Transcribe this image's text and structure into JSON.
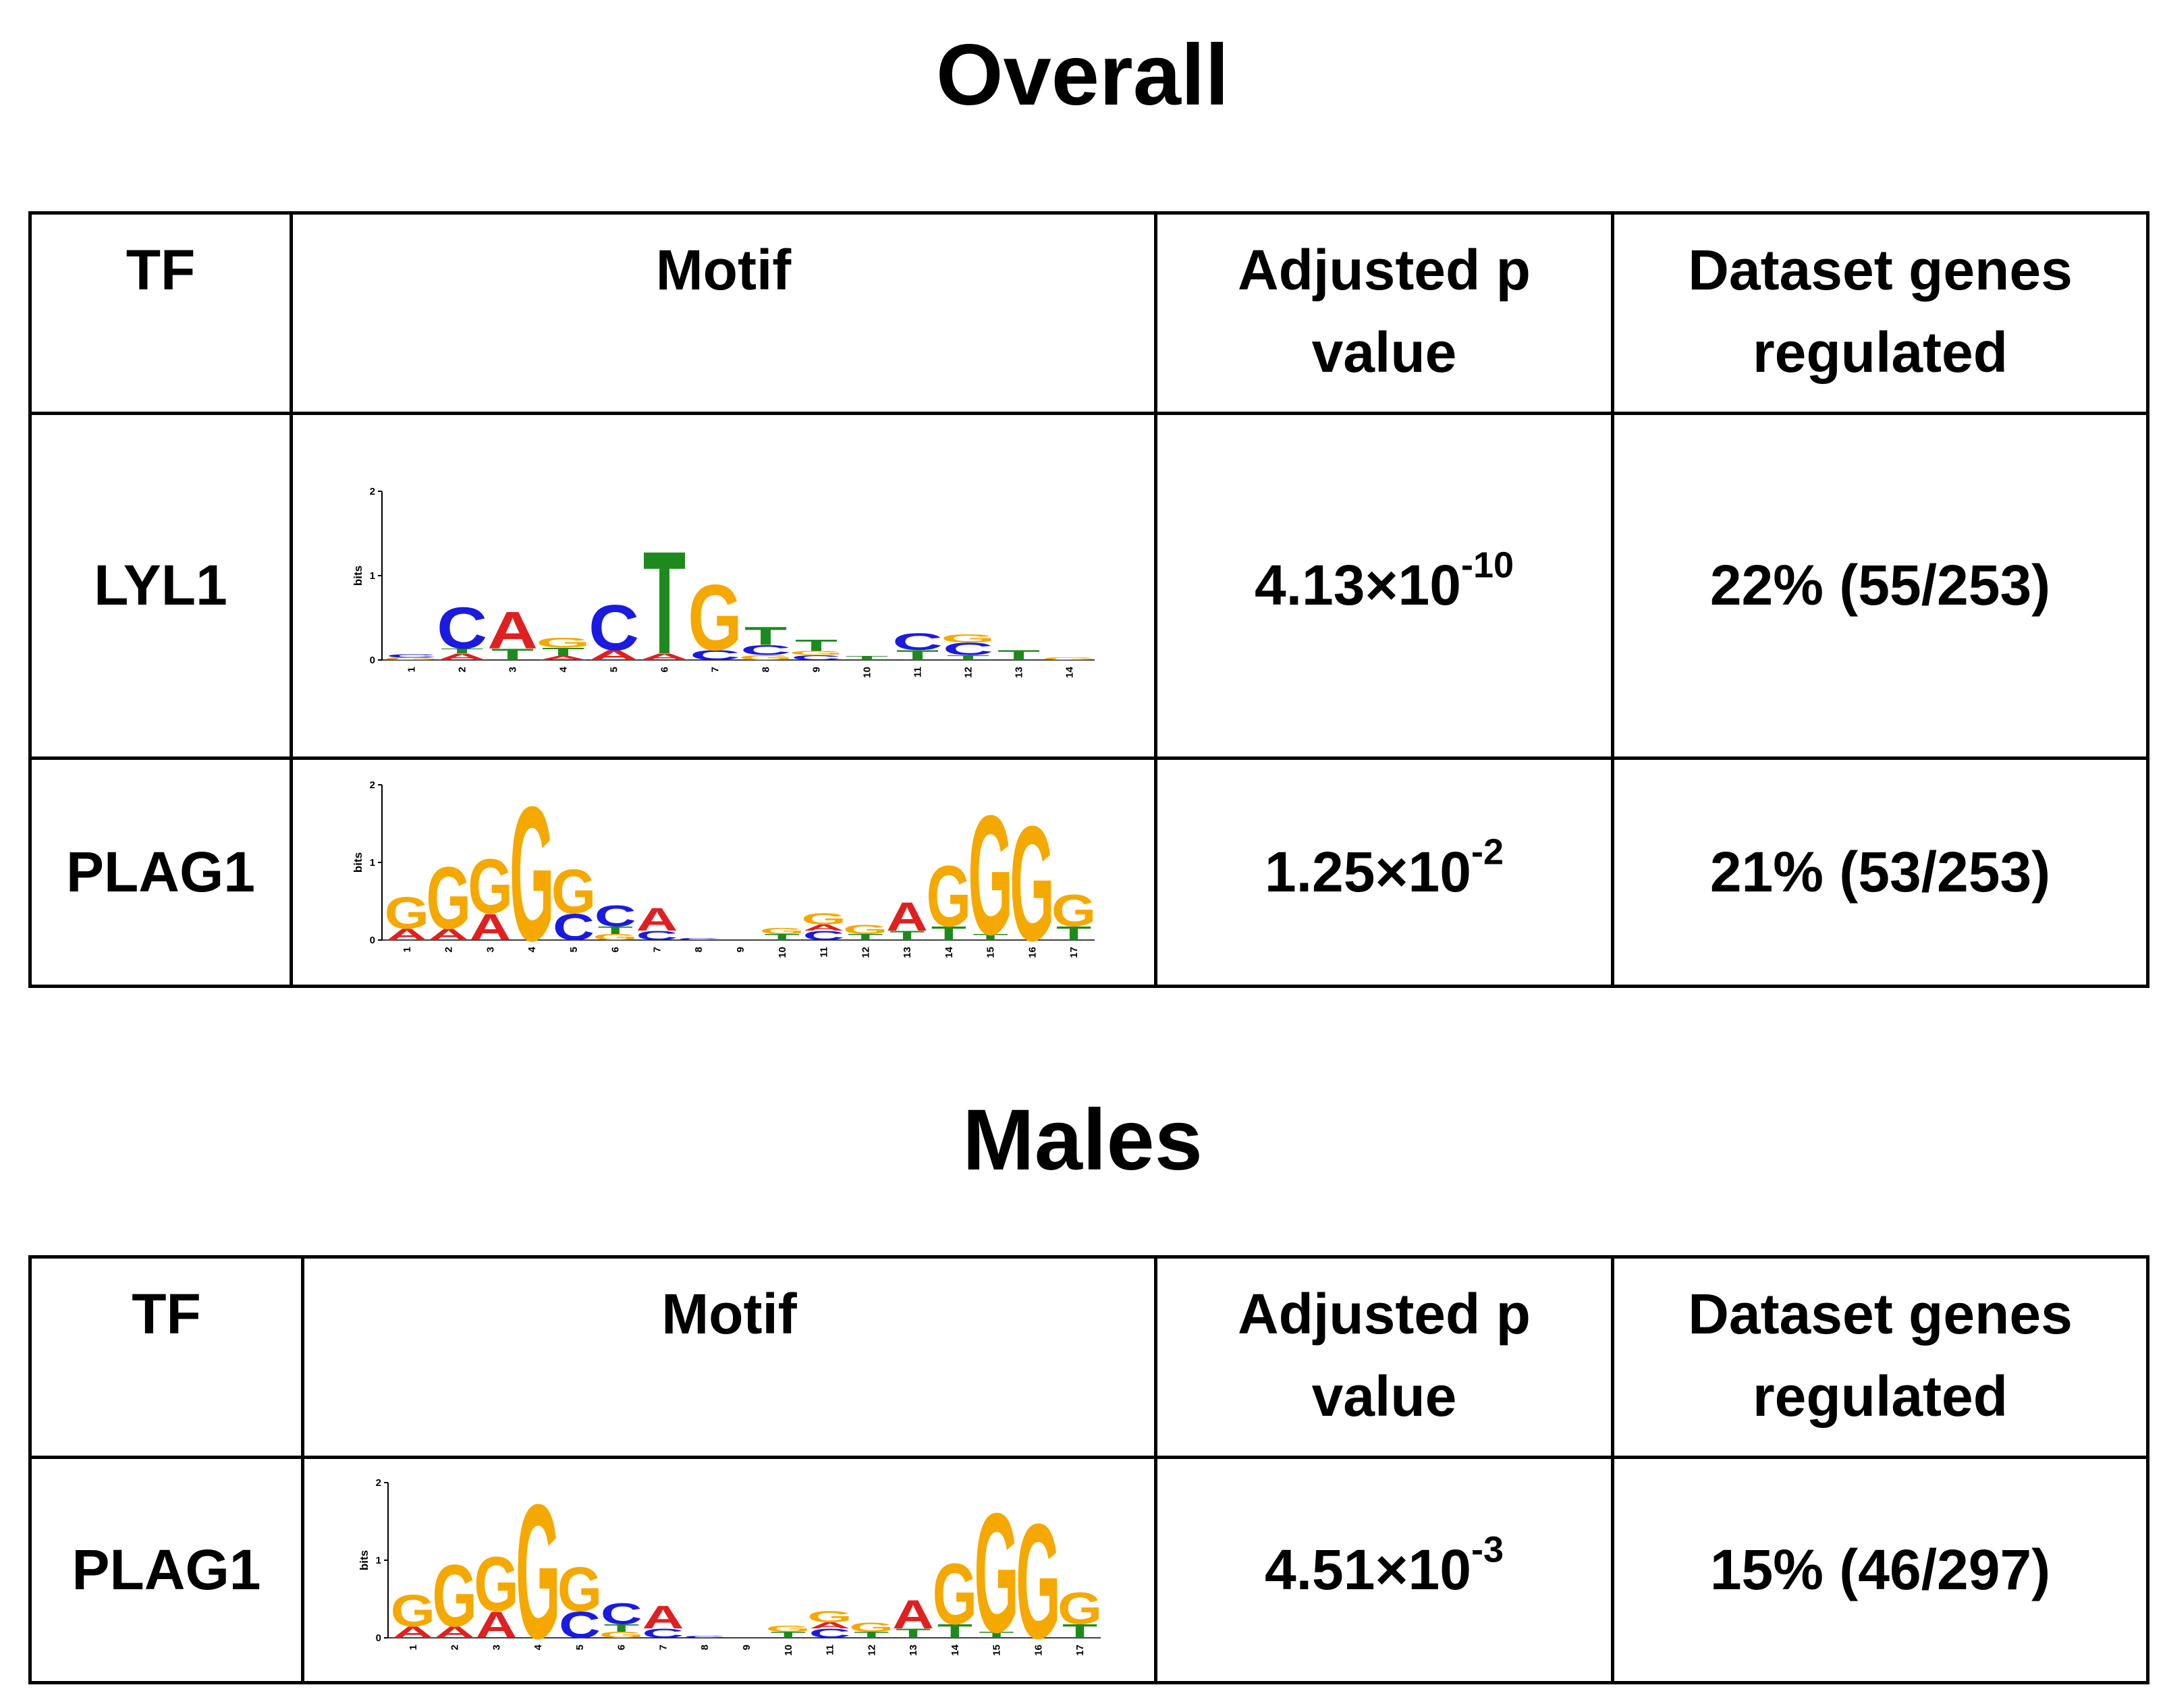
{
  "colors": {
    "A": "#e02020",
    "C": "#1a1ae0",
    "G": "#f5a800",
    "T": "#1d8a1d",
    "border": "#000000"
  },
  "sections": [
    {
      "title": "Overall",
      "headers": {
        "tf": "TF",
        "motif": "Motif",
        "pval": "Adjusted p value",
        "genes": "Dataset genes regulated"
      },
      "rows": [
        {
          "tf": "LYL1",
          "pval_base": "4.13×10",
          "pval_exp": "-10",
          "genes": "22% (55/253)",
          "motif_id": "lyl1"
        },
        {
          "tf": "PLAG1",
          "pval_base": "1.25×10",
          "pval_exp": "-2",
          "genes": "21% (53/253)",
          "motif_id": "plag1"
        }
      ]
    },
    {
      "title": "Males",
      "headers": {
        "tf": "TF",
        "motif": "Motif",
        "pval": "Adjusted p value",
        "genes": "Dataset genes regulated"
      },
      "rows": [
        {
          "tf": "PLAG1",
          "pval_base": "4.51×10",
          "pval_exp": "-3",
          "genes": "15% (46/297)",
          "motif_id": "plag1"
        }
      ]
    }
  ],
  "motifs": {
    "lyl1": {
      "ylabel": "bits",
      "yticks": [
        "0",
        "1",
        "2"
      ],
      "ymax": 2,
      "positions": [
        {
          "label": "1",
          "letters": [
            [
              "G",
              0.03
            ],
            [
              "C",
              0.04
            ]
          ]
        },
        {
          "label": "2",
          "letters": [
            [
              "A",
              0.08
            ],
            [
              "T",
              0.06
            ],
            [
              "C",
              0.5
            ]
          ]
        },
        {
          "label": "3",
          "letters": [
            [
              "T",
              0.14
            ],
            [
              "A",
              0.45
            ]
          ]
        },
        {
          "label": "4",
          "letters": [
            [
              "A",
              0.05
            ],
            [
              "T",
              0.1
            ],
            [
              "G",
              0.12
            ]
          ]
        },
        {
          "label": "5",
          "letters": [
            [
              "A",
              0.12
            ],
            [
              "C",
              0.55
            ]
          ]
        },
        {
          "label": "6",
          "letters": [
            [
              "A",
              0.08
            ],
            [
              "T",
              1.25
            ]
          ]
        },
        {
          "label": "7",
          "letters": [
            [
              "C",
              0.12
            ],
            [
              "G",
              0.8
            ]
          ]
        },
        {
          "label": "8",
          "letters": [
            [
              "G",
              0.06
            ],
            [
              "C",
              0.12
            ],
            [
              "T",
              0.22
            ]
          ]
        },
        {
          "label": "9",
          "letters": [
            [
              "C",
              0.06
            ],
            [
              "G",
              0.05
            ],
            [
              "T",
              0.14
            ]
          ]
        },
        {
          "label": "10",
          "letters": [
            [
              "T",
              0.05
            ]
          ]
        },
        {
          "label": "11",
          "letters": [
            [
              "T",
              0.12
            ],
            [
              "C",
              0.2
            ]
          ]
        },
        {
          "label": "12",
          "letters": [
            [
              "T",
              0.06
            ],
            [
              "C",
              0.15
            ],
            [
              "G",
              0.1
            ]
          ]
        },
        {
          "label": "13",
          "letters": [
            [
              "T",
              0.12
            ]
          ]
        },
        {
          "label": "14",
          "letters": [
            [
              "G",
              0.03
            ]
          ]
        }
      ]
    },
    "plag1": {
      "ylabel": "bits",
      "yticks": [
        "0",
        "1",
        "2"
      ],
      "ymax": 2,
      "positions": [
        {
          "label": "1",
          "letters": [
            [
              "A",
              0.15
            ],
            [
              "G",
              0.42
            ]
          ]
        },
        {
          "label": "2",
          "letters": [
            [
              "A",
              0.15
            ],
            [
              "G",
              0.82
            ]
          ]
        },
        {
          "label": "3",
          "letters": [
            [
              "A",
              0.35
            ],
            [
              "G",
              0.72
            ]
          ]
        },
        {
          "label": "4",
          "letters": [
            [
              "G",
              1.78
            ]
          ]
        },
        {
          "label": "5",
          "letters": [
            [
              "C",
              0.35
            ],
            [
              "G",
              0.58
            ]
          ]
        },
        {
          "label": "6",
          "letters": [
            [
              "G",
              0.08
            ],
            [
              "T",
              0.1
            ],
            [
              "C",
              0.28
            ]
          ]
        },
        {
          "label": "7",
          "letters": [
            [
              "C",
              0.12
            ],
            [
              "A",
              0.3
            ]
          ]
        },
        {
          "label": "8",
          "letters": [
            [
              "C",
              0.03
            ]
          ]
        },
        {
          "label": "9",
          "letters": []
        },
        {
          "label": "10",
          "letters": [
            [
              "T",
              0.08
            ],
            [
              "G",
              0.08
            ]
          ]
        },
        {
          "label": "11",
          "letters": [
            [
              "C",
              0.12
            ],
            [
              "A",
              0.08
            ],
            [
              "G",
              0.15
            ]
          ]
        },
        {
          "label": "12",
          "letters": [
            [
              "T",
              0.08
            ],
            [
              "G",
              0.12
            ]
          ]
        },
        {
          "label": "13",
          "letters": [
            [
              "T",
              0.12
            ],
            [
              "A",
              0.38
            ]
          ]
        },
        {
          "label": "14",
          "letters": [
            [
              "T",
              0.18
            ],
            [
              "G",
              0.8
            ]
          ]
        },
        {
          "label": "15",
          "letters": [
            [
              "T",
              0.08
            ],
            [
              "G",
              1.58
            ]
          ]
        },
        {
          "label": "16",
          "letters": [
            [
              "G",
              1.52
            ]
          ]
        },
        {
          "label": "17",
          "letters": [
            [
              "T",
              0.18
            ],
            [
              "G",
              0.42
            ]
          ]
        }
      ]
    }
  }
}
